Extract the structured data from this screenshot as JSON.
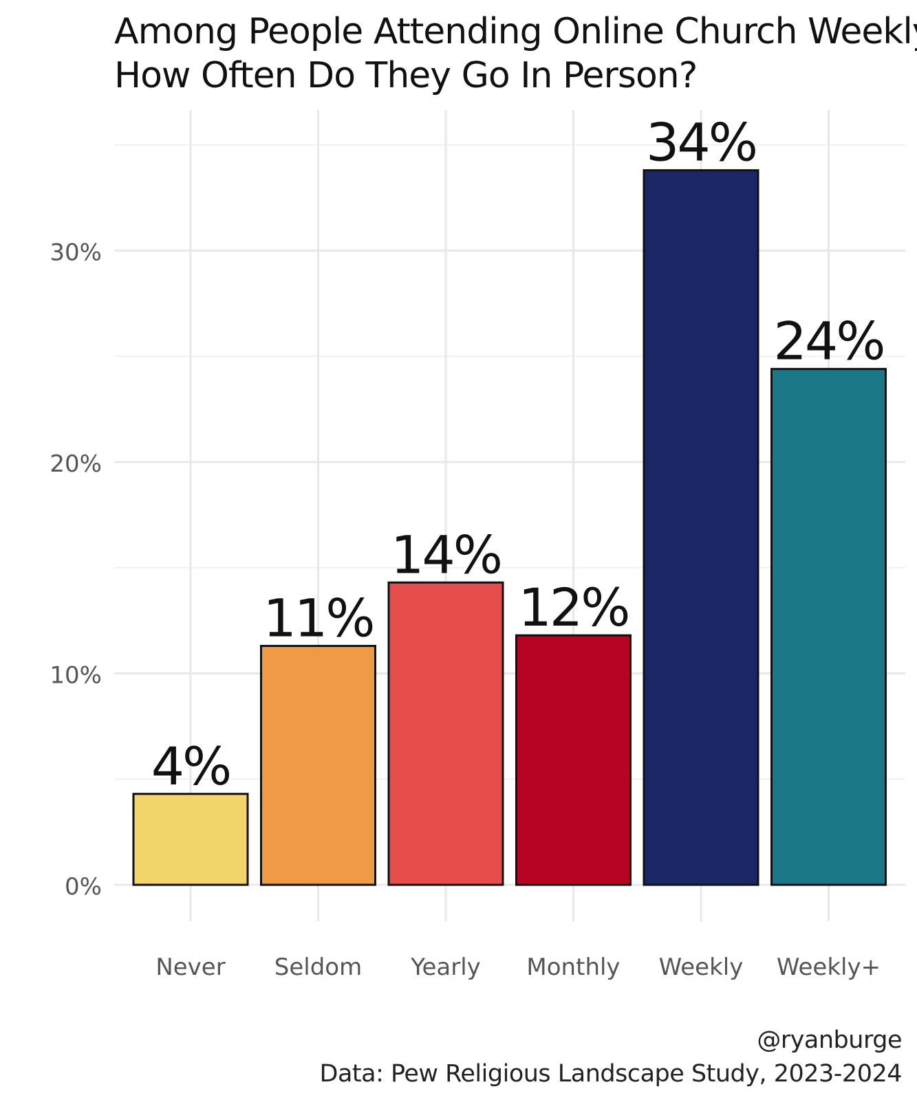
{
  "header": {
    "title_line1": "Among People Attending Online Church Weekly,",
    "title_line2": "How Often Do They Go In Person?"
  },
  "footer": {
    "handle": "@ryanburge",
    "source": "Data: Pew Religious Landscape Study, 2023-2024"
  },
  "chart_data": {
    "type": "bar",
    "title": "Among People Attending Online Church Weekly, How Often Do They Go In Person?",
    "categories": [
      "Never",
      "Seldom",
      "Yearly",
      "Monthly",
      "Weekly",
      "Weekly+"
    ],
    "values": [
      4.3,
      11.3,
      14.3,
      11.8,
      33.8,
      24.4
    ],
    "data_labels": [
      "4%",
      "11%",
      "14%",
      "12%",
      "34%",
      "24%"
    ],
    "bar_colors": [
      "#f2d46a",
      "#ef9a45",
      "#e64c4a",
      "#b80424",
      "#1b2666",
      "#1a7888"
    ],
    "y_ticks": [
      0,
      10,
      20,
      30
    ],
    "y_tick_labels": [
      "0%",
      "10%",
      "20%",
      "30%"
    ],
    "ylim": [
      0,
      35
    ],
    "xlabel": "",
    "ylabel": "",
    "grid": true,
    "legend": "none"
  }
}
